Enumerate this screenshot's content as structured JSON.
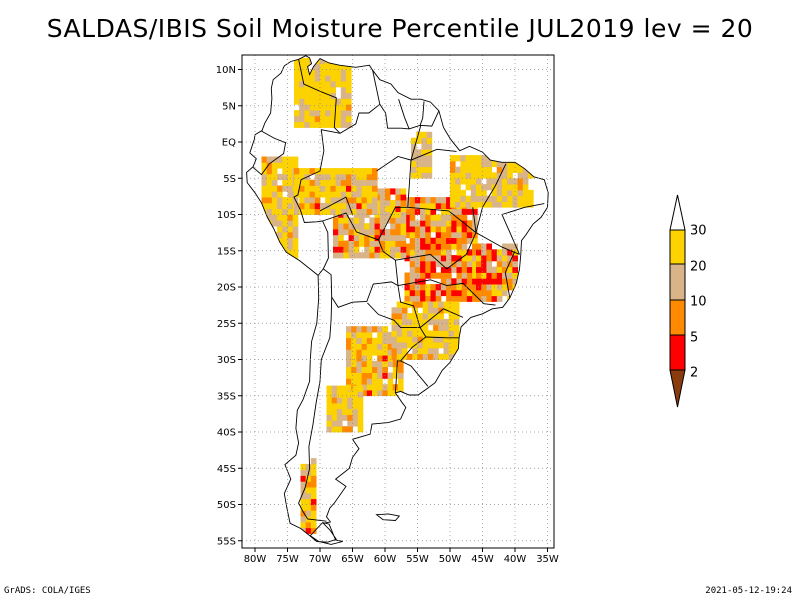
{
  "title": "SALDAS/IBIS Soil Moisture Percentile JUL2019 lev = 20",
  "footer": {
    "left": "GrADS: COLA/IGES",
    "right": "2021-05-12-19:24"
  },
  "map": {
    "lat_labels": [
      "10N",
      "5N",
      "EQ",
      "5S",
      "10S",
      "15S",
      "20S",
      "25S",
      "30S",
      "35S",
      "40S",
      "45S",
      "50S",
      "55S"
    ],
    "lon_labels": [
      "80W",
      "75W",
      "70W",
      "65W",
      "60W",
      "55W",
      "50W",
      "45W",
      "40W",
      "35W"
    ],
    "lat_range": [
      -56,
      12
    ],
    "lon_range": [
      -82,
      -34
    ],
    "grid": "dotted"
  },
  "colorbar": {
    "labels": [
      "30",
      "20",
      "10",
      "5",
      "2"
    ],
    "colors": [
      "#ffffff",
      "#fcd200",
      "#d8b488",
      "#ff8a00",
      "#ff0000",
      "#8b3c0f"
    ]
  }
}
